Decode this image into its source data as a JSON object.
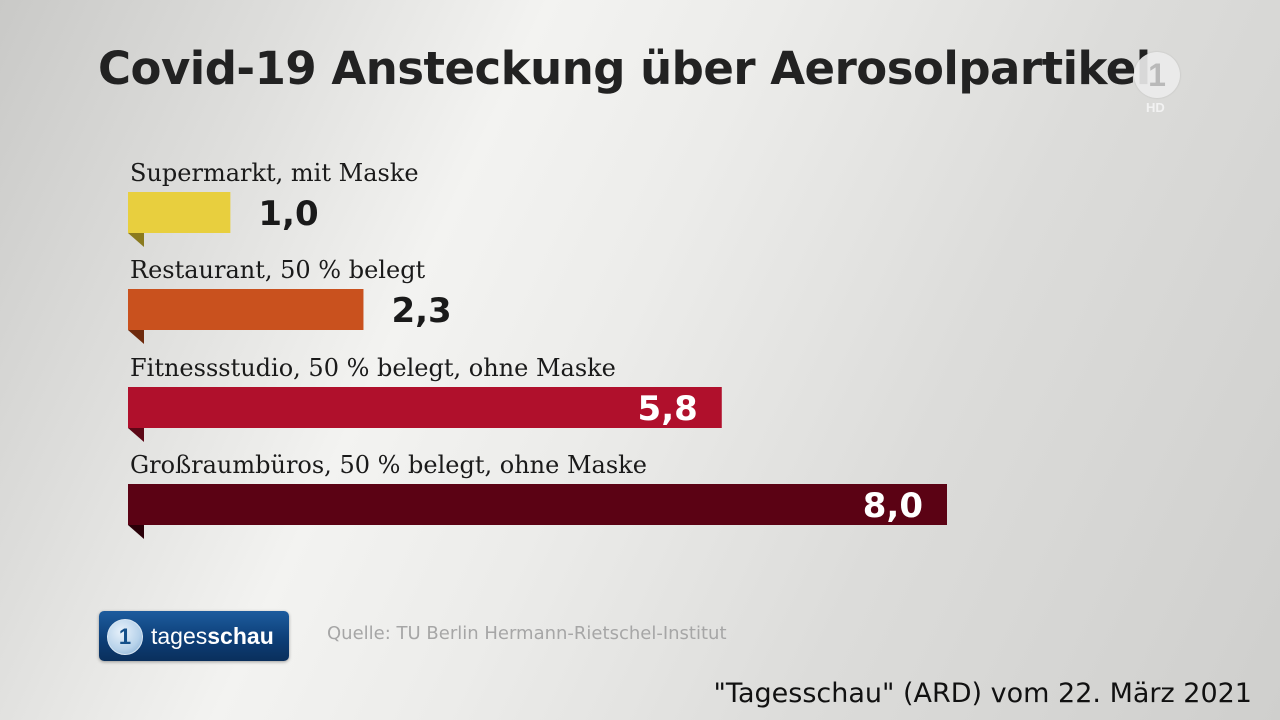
{
  "header": {
    "title": "Covid-19 Ansteckung über Aerosolpartikel"
  },
  "channel_logo": {
    "glyph": "1",
    "hd_label": "HD",
    "icon": "das-erste-logo-icon"
  },
  "chart_data": {
    "type": "bar",
    "orientation": "horizontal",
    "title": "Covid-19 Ansteckung über Aerosolpartikel",
    "categories": [
      "Supermarkt, mit Maske",
      "Restaurant, 50 % belegt",
      "Fitnessstudio, 50 % belegt, ohne Maske",
      "Großraumbüros, 50 % belegt, ohne Maske"
    ],
    "values": [
      1.0,
      2.3,
      5.8,
      8.0
    ],
    "value_labels": [
      "1,0",
      "2,3",
      "5,8",
      "8,0"
    ],
    "colors": [
      "#e8cf3e",
      "#c9511e",
      "#b0102c",
      "#5b0214"
    ],
    "xlim": [
      0,
      8.0
    ],
    "grid": false,
    "xlabel": "",
    "ylabel": ""
  },
  "footer": {
    "brand_prefix": "tages",
    "brand_suffix": "schau",
    "brand_glyph": "1",
    "source": "Quelle: TU Berlin Hermann-Rietschel-Institut",
    "caption": "\"Tagesschau\" (ARD) vom 22. März 2021"
  }
}
